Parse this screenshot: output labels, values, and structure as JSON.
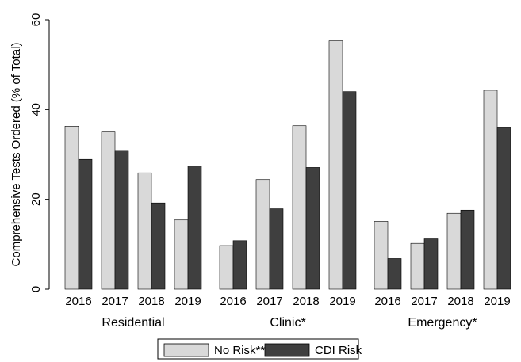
{
  "chart_data": {
    "type": "bar",
    "ylabel": "Comprehensive Tests Ordered (% of Total)",
    "ylim": [
      0,
      60
    ],
    "yticks": [
      0,
      20,
      40,
      60
    ],
    "groups": [
      "Residential",
      "Clinic*",
      "Emergency*"
    ],
    "categories": [
      "2016",
      "2017",
      "2018",
      "2019"
    ],
    "series": [
      {
        "name": "No Risk**",
        "color": "#d9d9d9",
        "values": [
          [
            36.3,
            35.0,
            25.9,
            15.4
          ],
          [
            9.7,
            24.4,
            36.4,
            55.3
          ],
          [
            15.1,
            10.2,
            16.9,
            44.3
          ]
        ]
      },
      {
        "name": "CDI Risk",
        "color": "#3f3f3f",
        "values": [
          [
            28.9,
            30.9,
            19.2,
            27.4
          ],
          [
            10.8,
            17.9,
            27.1,
            44.0
          ],
          [
            6.8,
            11.2,
            17.6,
            36.1
          ]
        ]
      }
    ],
    "legend_position": "bottom-center",
    "grid": false
  }
}
